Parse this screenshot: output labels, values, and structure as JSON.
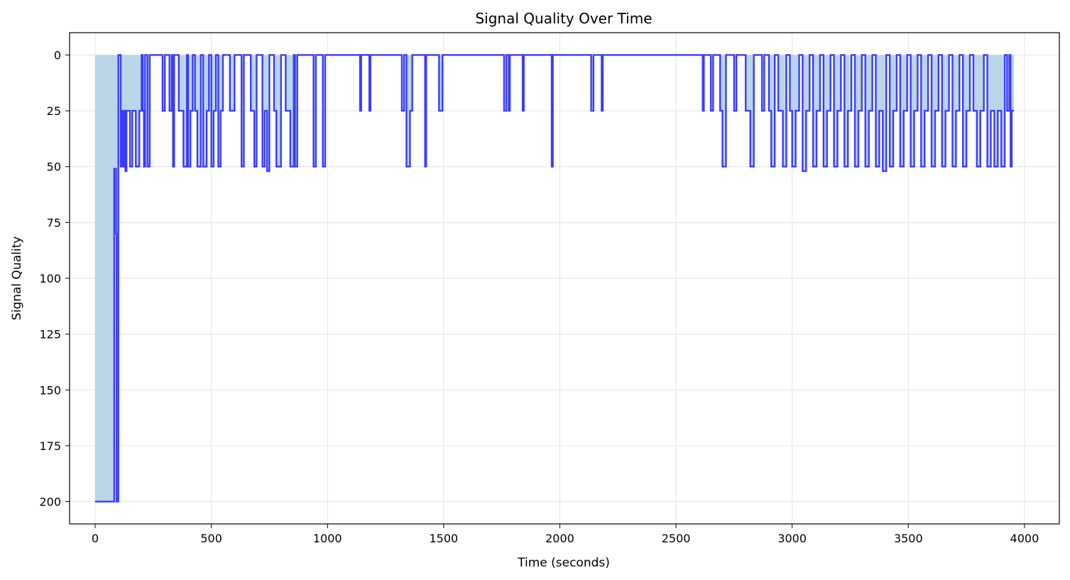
{
  "chart_data": {
    "type": "line",
    "title": "Signal Quality Over Time",
    "xlabel": "Time (seconds)",
    "ylabel": "Signal Quality",
    "xlim": [
      -110,
      4150
    ],
    "ylim": [
      210,
      -10
    ],
    "y_inverted": true,
    "grid": true,
    "xticks": [
      0,
      500,
      1000,
      1500,
      2000,
      2500,
      3000,
      3500,
      4000
    ],
    "yticks": [
      0,
      25,
      50,
      75,
      100,
      125,
      150,
      175,
      200
    ],
    "line_color": "#3b3bff",
    "fill_color": "#b9d5e8",
    "series": [
      {
        "type": "step",
        "points": [
          [
            0,
            200
          ],
          [
            80,
            200
          ],
          [
            82,
            51
          ],
          [
            88,
            51
          ],
          [
            90,
            80
          ],
          [
            92,
            200
          ],
          [
            98,
            200
          ],
          [
            100,
            0
          ],
          [
            108,
            0
          ],
          [
            110,
            50
          ],
          [
            115,
            25
          ],
          [
            120,
            50
          ],
          [
            125,
            25
          ],
          [
            130,
            52
          ],
          [
            135,
            25
          ],
          [
            150,
            50
          ],
          [
            160,
            25
          ],
          [
            175,
            50
          ],
          [
            190,
            25
          ],
          [
            200,
            0
          ],
          [
            205,
            25
          ],
          [
            210,
            50
          ],
          [
            215,
            0
          ],
          [
            225,
            50
          ],
          [
            235,
            0
          ],
          [
            290,
            25
          ],
          [
            300,
            0
          ],
          [
            320,
            25
          ],
          [
            330,
            0
          ],
          [
            335,
            50
          ],
          [
            340,
            0
          ],
          [
            360,
            25
          ],
          [
            380,
            50
          ],
          [
            395,
            0
          ],
          [
            400,
            50
          ],
          [
            410,
            25
          ],
          [
            420,
            0
          ],
          [
            430,
            25
          ],
          [
            440,
            50
          ],
          [
            455,
            0
          ],
          [
            465,
            50
          ],
          [
            480,
            25
          ],
          [
            490,
            0
          ],
          [
            500,
            50
          ],
          [
            510,
            25
          ],
          [
            520,
            0
          ],
          [
            530,
            50
          ],
          [
            540,
            25
          ],
          [
            550,
            0
          ],
          [
            580,
            25
          ],
          [
            600,
            0
          ],
          [
            630,
            50
          ],
          [
            640,
            0
          ],
          [
            670,
            25
          ],
          [
            685,
            50
          ],
          [
            695,
            0
          ],
          [
            720,
            50
          ],
          [
            730,
            25
          ],
          [
            740,
            52
          ],
          [
            750,
            0
          ],
          [
            770,
            25
          ],
          [
            780,
            50
          ],
          [
            800,
            0
          ],
          [
            820,
            25
          ],
          [
            840,
            50
          ],
          [
            855,
            0
          ],
          [
            860,
            50
          ],
          [
            870,
            0
          ],
          [
            940,
            50
          ],
          [
            950,
            0
          ],
          [
            980,
            50
          ],
          [
            990,
            0
          ],
          [
            1140,
            25
          ],
          [
            1145,
            0
          ],
          [
            1180,
            25
          ],
          [
            1185,
            0
          ],
          [
            1320,
            25
          ],
          [
            1330,
            0
          ],
          [
            1340,
            50
          ],
          [
            1355,
            25
          ],
          [
            1365,
            0
          ],
          [
            1420,
            50
          ],
          [
            1425,
            0
          ],
          [
            1480,
            25
          ],
          [
            1495,
            0
          ],
          [
            1760,
            25
          ],
          [
            1770,
            0
          ],
          [
            1780,
            25
          ],
          [
            1785,
            0
          ],
          [
            1840,
            25
          ],
          [
            1845,
            0
          ],
          [
            1965,
            50
          ],
          [
            1970,
            0
          ],
          [
            2135,
            25
          ],
          [
            2145,
            0
          ],
          [
            2180,
            25
          ],
          [
            2185,
            0
          ],
          [
            2615,
            25
          ],
          [
            2620,
            0
          ],
          [
            2650,
            25
          ],
          [
            2660,
            0
          ],
          [
            2690,
            25
          ],
          [
            2700,
            50
          ],
          [
            2715,
            0
          ],
          [
            2750,
            25
          ],
          [
            2760,
            0
          ],
          [
            2800,
            25
          ],
          [
            2820,
            50
          ],
          [
            2835,
            0
          ],
          [
            2870,
            25
          ],
          [
            2880,
            0
          ],
          [
            2900,
            25
          ],
          [
            2910,
            50
          ],
          [
            2925,
            0
          ],
          [
            2940,
            25
          ],
          [
            2960,
            50
          ],
          [
            2975,
            0
          ],
          [
            2990,
            25
          ],
          [
            3000,
            50
          ],
          [
            3015,
            25
          ],
          [
            3030,
            0
          ],
          [
            3045,
            52
          ],
          [
            3060,
            25
          ],
          [
            3075,
            0
          ],
          [
            3090,
            50
          ],
          [
            3105,
            25
          ],
          [
            3120,
            0
          ],
          [
            3135,
            50
          ],
          [
            3150,
            25
          ],
          [
            3165,
            0
          ],
          [
            3180,
            50
          ],
          [
            3195,
            25
          ],
          [
            3210,
            0
          ],
          [
            3225,
            50
          ],
          [
            3240,
            25
          ],
          [
            3255,
            0
          ],
          [
            3270,
            50
          ],
          [
            3285,
            25
          ],
          [
            3300,
            0
          ],
          [
            3315,
            50
          ],
          [
            3330,
            25
          ],
          [
            3345,
            0
          ],
          [
            3360,
            50
          ],
          [
            3375,
            25
          ],
          [
            3390,
            52
          ],
          [
            3405,
            0
          ],
          [
            3420,
            50
          ],
          [
            3435,
            25
          ],
          [
            3450,
            0
          ],
          [
            3465,
            50
          ],
          [
            3480,
            25
          ],
          [
            3495,
            0
          ],
          [
            3510,
            50
          ],
          [
            3525,
            25
          ],
          [
            3540,
            0
          ],
          [
            3555,
            50
          ],
          [
            3570,
            25
          ],
          [
            3585,
            0
          ],
          [
            3600,
            50
          ],
          [
            3615,
            25
          ],
          [
            3630,
            0
          ],
          [
            3645,
            50
          ],
          [
            3660,
            25
          ],
          [
            3675,
            0
          ],
          [
            3690,
            50
          ],
          [
            3705,
            25
          ],
          [
            3720,
            0
          ],
          [
            3735,
            50
          ],
          [
            3750,
            25
          ],
          [
            3765,
            0
          ],
          [
            3780,
            25
          ],
          [
            3795,
            50
          ],
          [
            3810,
            25
          ],
          [
            3825,
            0
          ],
          [
            3840,
            50
          ],
          [
            3855,
            25
          ],
          [
            3870,
            50
          ],
          [
            3885,
            25
          ],
          [
            3900,
            50
          ],
          [
            3915,
            0
          ],
          [
            3925,
            25
          ],
          [
            3935,
            0
          ],
          [
            3940,
            50
          ],
          [
            3945,
            25
          ],
          [
            3955,
            25
          ]
        ]
      }
    ]
  }
}
